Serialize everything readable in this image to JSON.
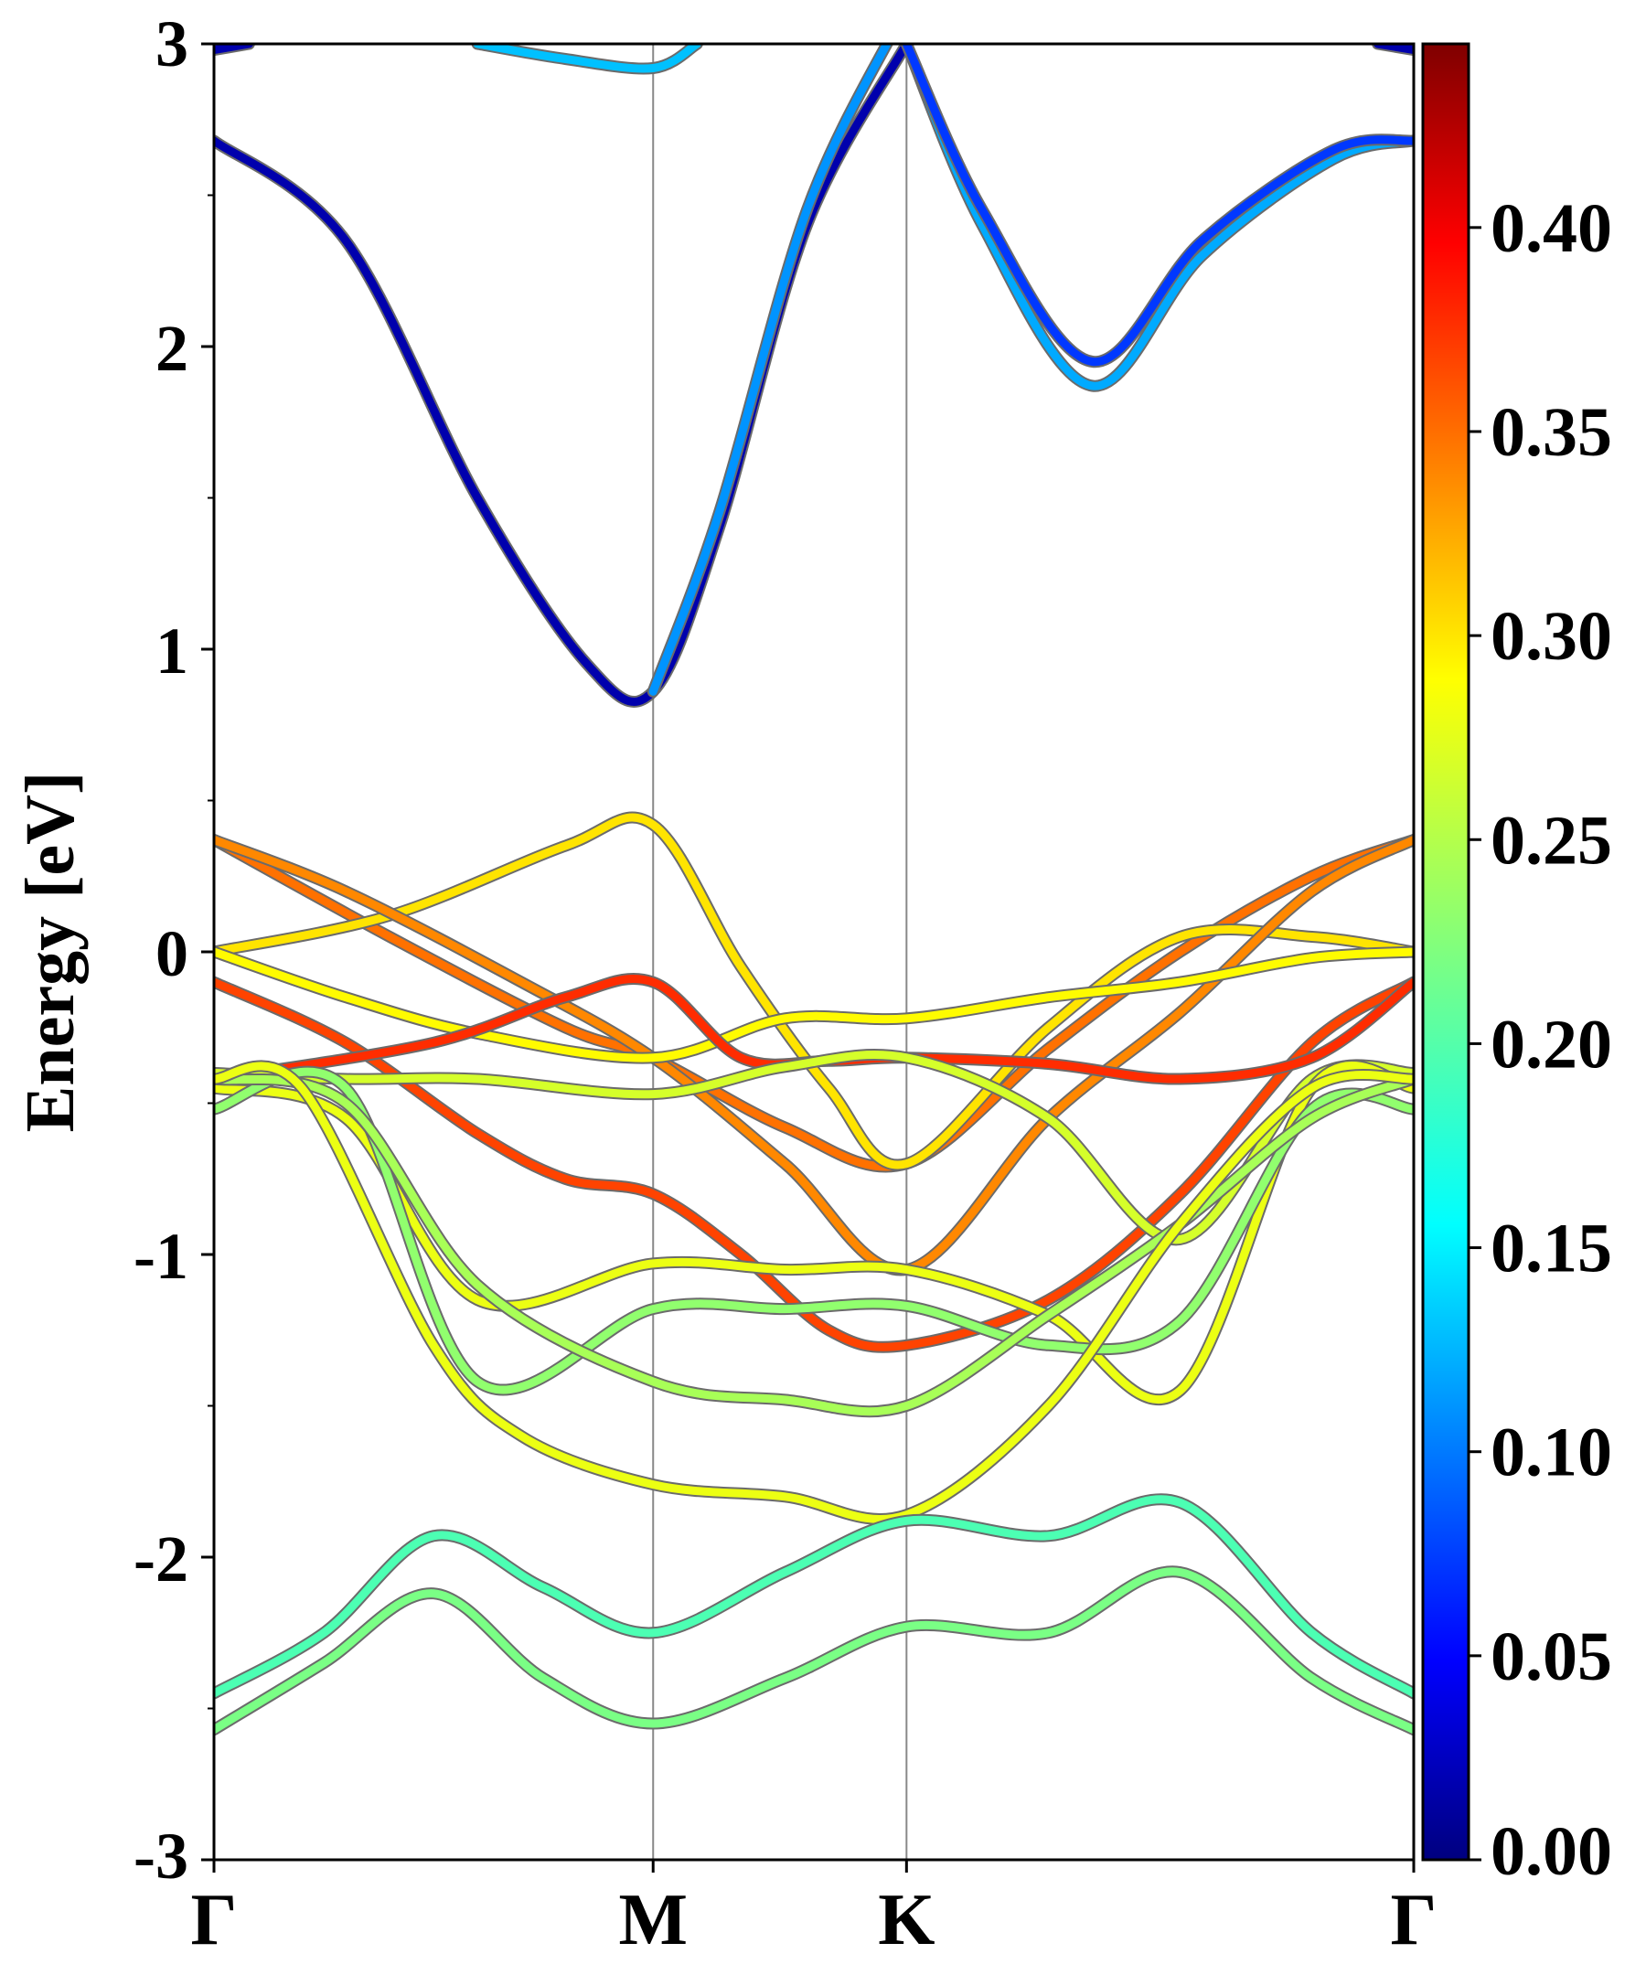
{
  "chart_data": {
    "type": "line",
    "ylabel": "Energy [eV]",
    "ylim": [
      -3,
      3
    ],
    "yticks": [
      "3",
      "2",
      "1",
      "0",
      "-1",
      "-2",
      "-3"
    ],
    "ytick_values": [
      3,
      2,
      1,
      0,
      -1,
      -2,
      -3
    ],
    "xticks": [
      {
        "label": "Γ",
        "pos": 0.0
      },
      {
        "label": "M",
        "pos": 1.0
      },
      {
        "label": "K",
        "pos": 1.577
      },
      {
        "label": "Γ",
        "pos": 2.732
      }
    ],
    "xlim": [
      0,
      2.732
    ],
    "colorbar": {
      "colormap": "jet",
      "range": [
        0.0,
        0.445
      ],
      "tick_values": [
        0.0,
        0.05,
        0.1,
        0.15,
        0.2,
        0.25,
        0.3,
        0.35,
        0.4
      ],
      "tick_labels": [
        "0.00",
        "0.05",
        "0.10",
        "0.15",
        "0.20",
        "0.25",
        "0.30",
        "0.35",
        "0.40"
      ]
    },
    "series": [
      {
        "c": 0.02,
        "points": [
          [
            0,
            2.68
          ],
          [
            0.3,
            2.35
          ],
          [
            0.6,
            1.5
          ],
          [
            0.85,
            0.95
          ],
          [
            1.0,
            0.86
          ],
          [
            1.15,
            1.4
          ],
          [
            1.35,
            2.4
          ],
          [
            1.577,
            3.0
          ]
        ]
      },
      {
        "c": 0.12,
        "points": [
          [
            1.0,
            0.86
          ],
          [
            1.15,
            1.45
          ],
          [
            1.35,
            2.45
          ],
          [
            1.55,
            3.05
          ]
        ]
      },
      {
        "c": 0.13,
        "points": [
          [
            1.577,
            3.0
          ],
          [
            1.75,
            2.4
          ],
          [
            2.0,
            1.87
          ],
          [
            2.25,
            2.3
          ],
          [
            2.55,
            2.62
          ],
          [
            2.732,
            2.68
          ]
        ]
      },
      {
        "c": 0.08,
        "points": [
          [
            1.577,
            3.0
          ],
          [
            1.75,
            2.45
          ],
          [
            2.0,
            1.95
          ],
          [
            2.25,
            2.35
          ],
          [
            2.55,
            2.65
          ],
          [
            2.732,
            2.68
          ]
        ]
      },
      {
        "c": 0.14,
        "points": [
          [
            0.6,
            3.0
          ],
          [
            0.8,
            2.95
          ],
          [
            1.0,
            2.92
          ],
          [
            1.1,
            3.0
          ]
        ]
      },
      {
        "c": 0.02,
        "points": [
          [
            0,
            2.98
          ],
          [
            0.08,
            3.0
          ]
        ]
      },
      {
        "c": 0.02,
        "points": [
          [
            2.65,
            3.0
          ],
          [
            2.732,
            2.98
          ]
        ]
      },
      {
        "c": 0.34,
        "points": [
          [
            0,
            0.37
          ],
          [
            0.4,
            0.05
          ],
          [
            0.8,
            -0.25
          ],
          [
            1.0,
            -0.35
          ],
          [
            1.3,
            -0.58
          ],
          [
            1.577,
            -0.7
          ],
          [
            1.9,
            -0.32
          ],
          [
            2.2,
            0.0
          ],
          [
            2.5,
            0.25
          ],
          [
            2.732,
            0.37
          ]
        ]
      },
      {
        "c": 0.29,
        "points": [
          [
            0,
            0.0
          ],
          [
            0.4,
            0.12
          ],
          [
            0.8,
            0.35
          ],
          [
            1.0,
            0.42
          ],
          [
            1.2,
            -0.05
          ],
          [
            1.4,
            -0.45
          ],
          [
            1.577,
            -0.7
          ],
          [
            1.9,
            -0.25
          ],
          [
            2.2,
            0.05
          ],
          [
            2.5,
            0.05
          ],
          [
            2.732,
            0.0
          ]
        ]
      },
      {
        "c": 0.33,
        "points": [
          [
            0,
            0.37
          ],
          [
            0.3,
            0.2
          ],
          [
            0.7,
            -0.1
          ],
          [
            1.0,
            -0.35
          ],
          [
            1.3,
            -0.7
          ],
          [
            1.577,
            -1.05
          ],
          [
            1.9,
            -0.55
          ],
          [
            2.2,
            -0.2
          ],
          [
            2.5,
            0.2
          ],
          [
            2.732,
            0.37
          ]
        ]
      },
      {
        "c": 0.28,
        "points": [
          [
            0,
            0.0
          ],
          [
            0.3,
            -0.15
          ],
          [
            0.6,
            -0.27
          ],
          [
            1.0,
            -0.35
          ],
          [
            1.3,
            -0.22
          ],
          [
            1.577,
            -0.22
          ],
          [
            1.9,
            -0.15
          ],
          [
            2.2,
            -0.1
          ],
          [
            2.5,
            -0.02
          ],
          [
            2.732,
            0.0
          ]
        ]
      },
      {
        "c": 0.36,
        "points": [
          [
            0,
            -0.1
          ],
          [
            0.3,
            -0.3
          ],
          [
            0.6,
            -0.6
          ],
          [
            0.8,
            -0.75
          ],
          [
            1.0,
            -0.8
          ],
          [
            1.2,
            -1.0
          ],
          [
            1.4,
            -1.25
          ],
          [
            1.577,
            -1.3
          ],
          [
            1.9,
            -1.15
          ],
          [
            2.2,
            -0.8
          ],
          [
            2.5,
            -0.3
          ],
          [
            2.732,
            -0.1
          ]
        ]
      },
      {
        "c": 0.37,
        "points": [
          [
            0,
            -0.42
          ],
          [
            0.5,
            -0.3
          ],
          [
            0.8,
            -0.15
          ],
          [
            1.0,
            -0.1
          ],
          [
            1.2,
            -0.35
          ],
          [
            1.4,
            -0.36
          ],
          [
            1.577,
            -0.35
          ],
          [
            1.9,
            -0.37
          ],
          [
            2.2,
            -0.42
          ],
          [
            2.5,
            -0.35
          ],
          [
            2.732,
            -0.1
          ]
        ]
      },
      {
        "c": 0.26,
        "points": [
          [
            0,
            -0.4
          ],
          [
            0.3,
            -0.42
          ],
          [
            0.6,
            -0.42
          ],
          [
            1.0,
            -0.47
          ],
          [
            1.3,
            -0.38
          ],
          [
            1.577,
            -0.35
          ],
          [
            1.9,
            -0.55
          ],
          [
            2.2,
            -0.95
          ],
          [
            2.5,
            -0.42
          ],
          [
            2.732,
            -0.4
          ]
        ]
      },
      {
        "c": 0.27,
        "points": [
          [
            0,
            -0.45
          ],
          [
            0.3,
            -0.55
          ],
          [
            0.6,
            -1.15
          ],
          [
            1.0,
            -1.03
          ],
          [
            1.3,
            -1.05
          ],
          [
            1.577,
            -1.05
          ],
          [
            1.9,
            -1.2
          ],
          [
            2.2,
            -1.45
          ],
          [
            2.5,
            -0.45
          ],
          [
            2.732,
            -0.45
          ]
        ]
      },
      {
        "c": 0.23,
        "points": [
          [
            0,
            -0.52
          ],
          [
            0.3,
            -0.45
          ],
          [
            0.6,
            -1.42
          ],
          [
            1.0,
            -1.18
          ],
          [
            1.3,
            -1.18
          ],
          [
            1.577,
            -1.17
          ],
          [
            1.9,
            -1.3
          ],
          [
            2.2,
            -1.22
          ],
          [
            2.5,
            -0.52
          ],
          [
            2.732,
            -0.52
          ]
        ]
      },
      {
        "c": 0.24,
        "points": [
          [
            0,
            -0.42
          ],
          [
            0.3,
            -0.5
          ],
          [
            0.6,
            -1.1
          ],
          [
            1.0,
            -1.42
          ],
          [
            1.3,
            -1.48
          ],
          [
            1.577,
            -1.5
          ],
          [
            1.9,
            -1.2
          ],
          [
            2.2,
            -0.9
          ],
          [
            2.5,
            -0.55
          ],
          [
            2.732,
            -0.42
          ]
        ]
      },
      {
        "c": 0.27,
        "points": [
          [
            0,
            -0.42
          ],
          [
            0.2,
            -0.45
          ],
          [
            0.5,
            -1.3
          ],
          [
            0.7,
            -1.6
          ],
          [
            1.0,
            -1.76
          ],
          [
            1.3,
            -1.8
          ],
          [
            1.577,
            -1.86
          ],
          [
            1.9,
            -1.5
          ],
          [
            2.2,
            -0.9
          ],
          [
            2.5,
            -0.45
          ],
          [
            2.732,
            -0.42
          ]
        ]
      },
      {
        "c": 0.2,
        "points": [
          [
            0,
            -2.45
          ],
          [
            0.25,
            -2.25
          ],
          [
            0.5,
            -1.93
          ],
          [
            0.75,
            -2.1
          ],
          [
            1.0,
            -2.25
          ],
          [
            1.3,
            -2.05
          ],
          [
            1.577,
            -1.88
          ],
          [
            1.9,
            -1.93
          ],
          [
            2.2,
            -1.82
          ],
          [
            2.5,
            -2.25
          ],
          [
            2.732,
            -2.45
          ]
        ]
      },
      {
        "c": 0.22,
        "points": [
          [
            0,
            -2.57
          ],
          [
            0.25,
            -2.35
          ],
          [
            0.5,
            -2.12
          ],
          [
            0.75,
            -2.4
          ],
          [
            1.0,
            -2.55
          ],
          [
            1.3,
            -2.4
          ],
          [
            1.577,
            -2.23
          ],
          [
            1.9,
            -2.25
          ],
          [
            2.2,
            -2.05
          ],
          [
            2.5,
            -2.4
          ],
          [
            2.732,
            -2.57
          ]
        ]
      }
    ]
  }
}
